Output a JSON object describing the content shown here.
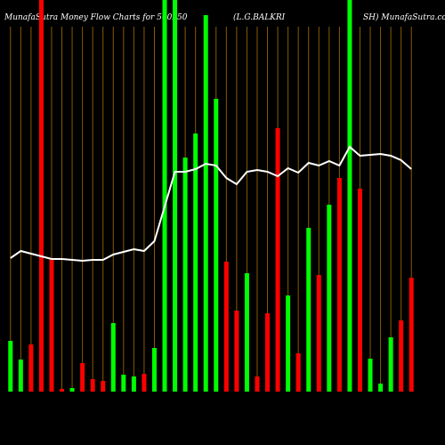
{
  "chart_data": {
    "type": "bar",
    "title_parts": [
      "MunafaSutra  Money Flow  Charts for 500250",
      "(L.G.BALKRI",
      "SH) MunafaSutra.com"
    ],
    "categories": [
      null,
      null,
      null,
      null,
      null,
      null,
      null,
      null,
      null,
      null,
      null,
      null,
      null,
      null,
      null,
      null,
      null,
      null,
      null,
      null,
      null,
      null,
      null,
      null,
      null,
      null,
      null,
      null,
      null,
      null,
      null,
      null,
      null,
      null,
      null,
      null,
      null,
      null,
      null,
      null
    ],
    "values": [
      57,
      36,
      53,
      440,
      149,
      3,
      4,
      32,
      14,
      12,
      77,
      19,
      17,
      20,
      49,
      440,
      440,
      263,
      290,
      423,
      329,
      146,
      91,
      133,
      17,
      88,
      296,
      108,
      43,
      184,
      131,
      210,
      240,
      440,
      228,
      37,
      9,
      61,
      80,
      128
    ],
    "colors": [
      "#00ff00",
      "#00ff00",
      "#ff0000",
      "#ff0000",
      "#ff0000",
      "#ff0000",
      "#00ff00",
      "#ff0000",
      "#ff0000",
      "#ff0000",
      "#00ff00",
      "#00ff00",
      "#00ff00",
      "#ff0000",
      "#00ff00",
      "#00ff00",
      "#00ff00",
      "#00ff00",
      "#00ff00",
      "#00ff00",
      "#00ff00",
      "#ff0000",
      "#ff0000",
      "#00ff00",
      "#ff0000",
      "#ff0000",
      "#ff0000",
      "#00ff00",
      "#ff0000",
      "#00ff00",
      "#ff0000",
      "#00ff00",
      "#ff0000",
      "#00ff00",
      "#ff0000",
      "#00ff00",
      "#00ff00",
      "#00ff00",
      "#ff0000",
      "#ff0000"
    ],
    "line_values": [
      150,
      158,
      155,
      152,
      149,
      149,
      148,
      147,
      148,
      148,
      154,
      157,
      160,
      158,
      169,
      208,
      247,
      247,
      250,
      256,
      254,
      240,
      233,
      247,
      249,
      247,
      242,
      251,
      246,
      257,
      254,
      259,
      254,
      275,
      265,
      266,
      267,
      265,
      260,
      250
    ],
    "line_color": "#ffffff",
    "grid_color": "#8a5a00",
    "ylim": [
      0,
      440
    ],
    "grid": true
  }
}
